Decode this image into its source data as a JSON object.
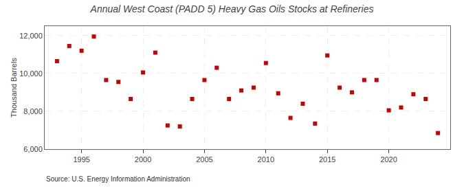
{
  "chart_data": {
    "type": "scatter",
    "title": "Annual West Coast (PADD 5) Heavy Gas Oils Stocks at Refineries",
    "ylabel": "Thousand Barrels",
    "annotations": [
      "Source: U.S. Energy Information Administration"
    ],
    "x": [
      1993,
      1994,
      1995,
      1996,
      1997,
      1998,
      1999,
      2000,
      2001,
      2002,
      2003,
      2004,
      2005,
      2006,
      2007,
      2008,
      2009,
      2010,
      2011,
      2012,
      2013,
      2014,
      2015,
      2016,
      2017,
      2018,
      2019,
      2020,
      2021,
      2022,
      2023,
      2024
    ],
    "values": [
      10650,
      11450,
      11200,
      11950,
      9650,
      9550,
      8650,
      10050,
      11100,
      7250,
      7200,
      8650,
      9650,
      10300,
      8650,
      9100,
      9250,
      10550,
      8950,
      7650,
      8400,
      7350,
      10950,
      9250,
      9000,
      9650,
      9650,
      8050,
      8200,
      8900,
      8650,
      6850
    ],
    "color": "#cc0000",
    "marker": "square",
    "xlim": [
      1992.0,
      2025.0
    ],
    "xticks": [
      1995,
      2000,
      2005,
      2010,
      2015,
      2020
    ],
    "ylim": [
      6000,
      12500
    ],
    "yticks": [
      {
        "value": 6000,
        "label": "6,000"
      },
      {
        "value": 8000,
        "label": "8,000"
      },
      {
        "value": 10000,
        "label": "10,000"
      },
      {
        "value": 12000,
        "label": "12,000"
      }
    ],
    "grid": true
  }
}
